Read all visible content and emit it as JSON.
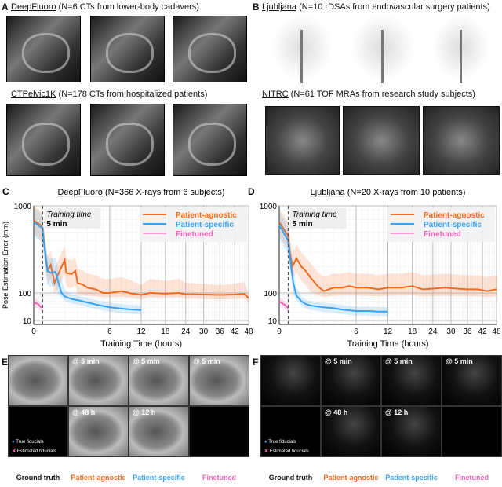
{
  "panels": {
    "a": {
      "label": "A",
      "title1_name": "DeepFluoro",
      "title1_rest": " (N=6 CTs from lower-body cadavers)",
      "title2_name": "CTPelvic1K",
      "title2_rest": " (N=178 CTs from hospitalized patients)"
    },
    "b": {
      "label": "B",
      "title1_name": "Ljubljana",
      "title1_rest": " (N=10 rDSAs from endovascular surgery patients)",
      "title2_name": "NITRC",
      "title2_rest": " (N=61 TOF MRAs from research study subjects)"
    },
    "e": {
      "label": "E",
      "tiles": [
        "@ 5 min",
        "@ 5 min",
        "@ 5 min",
        "@ 48 h",
        "@ 12 h"
      ],
      "legend_true": "True fiducials",
      "legend_est": "Estimated fiducials"
    },
    "f": {
      "label": "F",
      "tiles": [
        "@ 5 min",
        "@ 5 min",
        "@ 5 min",
        "@ 48 h",
        "@ 12 h"
      ],
      "legend_true": "True fiducials",
      "legend_est": "Estimated fiducials"
    },
    "columns": [
      "Ground truth",
      "Patient-agnostic",
      "Patient-specific",
      "Finetuned"
    ]
  },
  "colors": {
    "agnostic": "#f26b1d",
    "specific": "#38a3f5",
    "finetuned": "#f062b8"
  },
  "chart_data": [
    {
      "type": "line",
      "label": "C",
      "title_name": "DeepFluoro",
      "title_rest": " (N=366 X-rays from 6 subjects)",
      "xlabel": "Training Time (hours)",
      "ylabel": "Pose Estimation Error (mm)",
      "xscale": "sqrt",
      "yscale": "log",
      "xlim": [
        0,
        48
      ],
      "ylim": [
        10,
        1000
      ],
      "xticks": [
        "0",
        "6",
        "12",
        "18",
        "24",
        "30",
        "36",
        "42",
        "48"
      ],
      "yticks": [
        "10",
        "100",
        "1000"
      ],
      "annotation": {
        "line1": "Training time",
        "line2": "5 min",
        "x": 0.083
      },
      "legend": "top-right",
      "series": [
        {
          "name": "Patient-agnostic",
          "points": [
            [
              0,
              680
            ],
            [
              0.05,
              600
            ],
            [
              0.08,
              550
            ],
            [
              0.12,
              350
            ],
            [
              0.2,
              180
            ],
            [
              0.3,
              210
            ],
            [
              0.45,
              130
            ],
            [
              0.6,
              160
            ],
            [
              1.0,
              240
            ],
            [
              1.1,
              170
            ],
            [
              1.5,
              165
            ],
            [
              1.8,
              180
            ],
            [
              2.0,
              130
            ],
            [
              2.5,
              125
            ],
            [
              3,
              115
            ],
            [
              4,
              110
            ],
            [
              5,
              100
            ],
            [
              6,
              100
            ],
            [
              8,
              105
            ],
            [
              10,
              95
            ],
            [
              12,
              85
            ],
            [
              14,
              100
            ],
            [
              18,
              95
            ],
            [
              22,
              100
            ],
            [
              24,
              90
            ],
            [
              30,
              88
            ],
            [
              36,
              85
            ],
            [
              42,
              88
            ],
            [
              46,
              92
            ],
            [
              48,
              65
            ]
          ]
        },
        {
          "name": "Patient-specific",
          "points": [
            [
              0,
              650
            ],
            [
              0.08,
              550
            ],
            [
              0.15,
              250
            ],
            [
              0.2,
              180
            ],
            [
              0.3,
              170
            ],
            [
              0.5,
              175
            ],
            [
              0.6,
              140
            ],
            [
              0.8,
              100
            ],
            [
              1,
              75
            ],
            [
              1.5,
              60
            ],
            [
              2,
              55
            ],
            [
              3,
              45
            ],
            [
              4,
              38
            ],
            [
              6,
              30
            ],
            [
              8,
              27
            ],
            [
              10,
              25
            ],
            [
              12,
              24
            ]
          ]
        },
        {
          "name": "Finetuned",
          "points": [
            [
              0,
              45
            ],
            [
              0.02,
              40
            ],
            [
              0.04,
              33
            ],
            [
              0.06,
              30
            ],
            [
              0.083,
              30
            ]
          ]
        }
      ]
    },
    {
      "type": "line",
      "label": "D",
      "title_name": "Ljubljana",
      "title_rest": " (N=20 X-rays from 10 patients)",
      "xlabel": "Training Time (hours)",
      "ylabel": "",
      "xscale": "sqrt",
      "yscale": "log",
      "xlim": [
        0,
        48
      ],
      "ylim": [
        10,
        1000
      ],
      "xticks": [
        "0",
        "6",
        "12",
        "18",
        "24",
        "30",
        "36",
        "42",
        "48"
      ],
      "yticks": [
        "10",
        "100",
        "1000"
      ],
      "annotation": {
        "line1": "Training time",
        "line2": "5 min",
        "x": 0.083
      },
      "legend": "top-right",
      "series": [
        {
          "name": "Patient-agnostic",
          "points": [
            [
              0,
              650
            ],
            [
              0.08,
              450
            ],
            [
              0.12,
              280
            ],
            [
              0.18,
              200
            ],
            [
              0.3,
              250
            ],
            [
              0.5,
              200
            ],
            [
              0.7,
              180
            ],
            [
              1,
              150
            ],
            [
              1.5,
              120
            ],
            [
              2,
              105
            ],
            [
              2.5,
              110
            ],
            [
              3,
              115
            ],
            [
              4,
              115
            ],
            [
              5,
              120
            ],
            [
              6,
              115
            ],
            [
              8,
              115
            ],
            [
              10,
              110
            ],
            [
              12,
              115
            ],
            [
              15,
              115
            ],
            [
              18,
              120
            ],
            [
              21,
              110
            ],
            [
              24,
              112
            ],
            [
              28,
              115
            ],
            [
              32,
              112
            ],
            [
              36,
              110
            ],
            [
              40,
              110
            ],
            [
              44,
              105
            ],
            [
              48,
              110
            ]
          ]
        },
        {
          "name": "Patient-specific",
          "points": [
            [
              0,
              600
            ],
            [
              0.08,
              400
            ],
            [
              0.12,
              250
            ],
            [
              0.2,
              130
            ],
            [
              0.3,
              80
            ],
            [
              0.5,
              50
            ],
            [
              0.7,
              40
            ],
            [
              1,
              35
            ],
            [
              1.5,
              32
            ],
            [
              2,
              30
            ],
            [
              3,
              28
            ],
            [
              4,
              25
            ],
            [
              6,
              22
            ],
            [
              8,
              22
            ],
            [
              10,
              21
            ],
            [
              12,
              21
            ]
          ]
        },
        {
          "name": "Finetuned",
          "points": [
            [
              0,
              50
            ],
            [
              0.04,
              35
            ],
            [
              0.083,
              28
            ]
          ]
        }
      ]
    }
  ]
}
